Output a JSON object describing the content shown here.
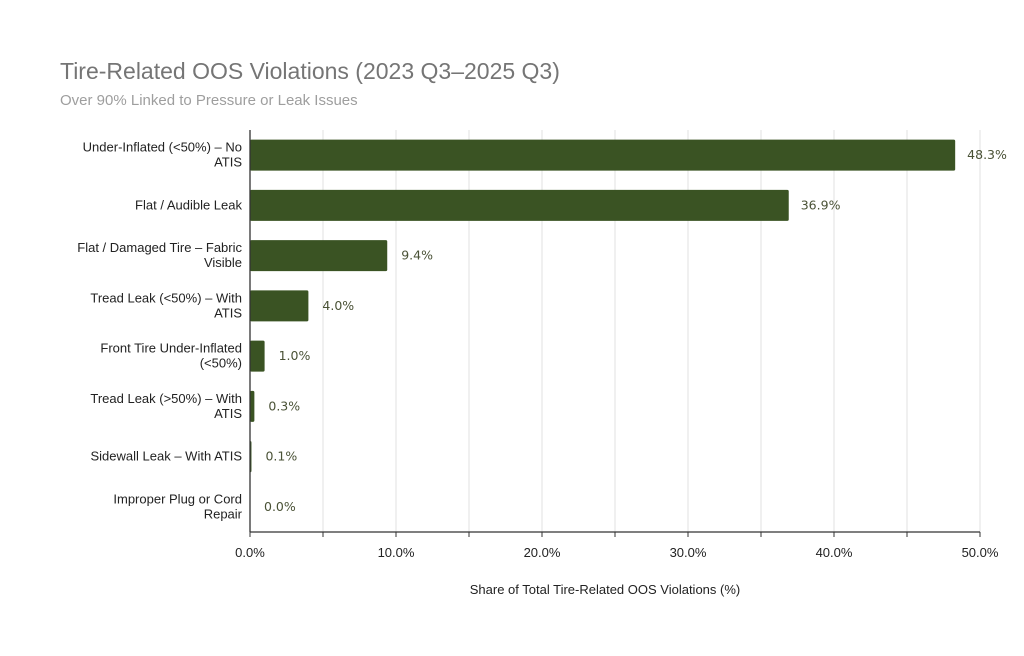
{
  "chart_data": {
    "type": "bar",
    "orientation": "horizontal",
    "title": "Tire-Related OOS Violations (2023 Q3–2025 Q3)",
    "subtitle": "Over 90% Linked to Pressure or Leak Issues",
    "categories": [
      [
        "Under-Inflated (<50%) – No",
        "ATIS"
      ],
      [
        "Flat / Audible Leak"
      ],
      [
        "Flat / Damaged Tire – Fabric",
        "Visible"
      ],
      [
        "Tread Leak (<50%) – With",
        "ATIS"
      ],
      [
        "Front Tire Under-Inflated",
        "(<50%)"
      ],
      [
        "Tread Leak (>50%) – With",
        "ATIS"
      ],
      [
        "Sidewall Leak – With ATIS"
      ],
      [
        "Improper Plug or Cord",
        "Repair"
      ]
    ],
    "values": [
      48.3,
      36.9,
      9.4,
      4.0,
      1.0,
      0.3,
      0.1,
      0.0
    ],
    "data_labels": [
      "48.3%",
      "36.9%",
      "9.4%",
      "4.0%",
      "1.0%",
      "0.3%",
      "0.1%",
      "0.0%"
    ],
    "xlabel": "Share of Total Tire-Related OOS Violations (%)",
    "ylabel": "",
    "xlim": [
      0,
      50
    ],
    "xticks": [
      0,
      10,
      20,
      30,
      40,
      50
    ],
    "xtick_labels": [
      "0.0%",
      "10.0%",
      "20.0%",
      "30.0%",
      "40.0%",
      "50.0%"
    ],
    "grid": true,
    "bar_color": "#3a5323"
  }
}
